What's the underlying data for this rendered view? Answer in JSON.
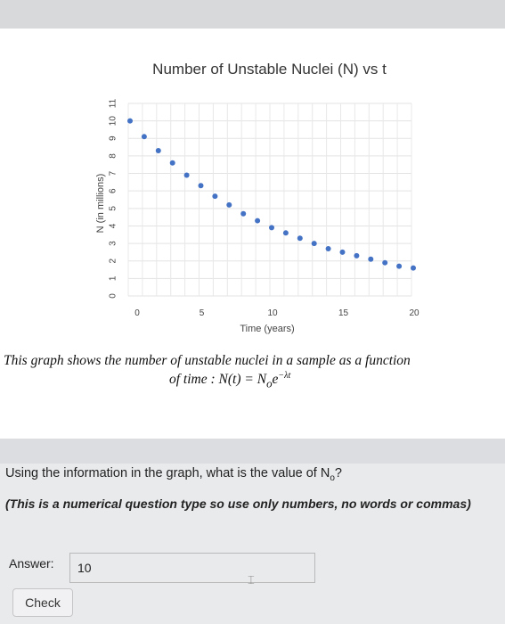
{
  "chart_data": {
    "type": "scatter",
    "title": "Number of Unstable Nuclei (N) vs t",
    "xlabel": "Time (years)",
    "ylabel": "N (in millions)",
    "xlim": [
      0,
      20
    ],
    "ylim": [
      0,
      11
    ],
    "x_ticks": [
      0,
      5,
      10,
      15,
      20
    ],
    "y_ticks": [
      0,
      1,
      2,
      3,
      4,
      5,
      6,
      7,
      8,
      9,
      10,
      11
    ],
    "grid": true,
    "marker_color": "#4472c4",
    "series": [
      {
        "x": [
          0,
          1,
          2,
          3,
          4,
          5,
          6,
          7,
          8,
          9,
          10,
          11,
          12,
          13,
          14,
          15,
          16,
          17,
          18,
          19,
          20
        ],
        "y": [
          10,
          9.1,
          8.3,
          7.6,
          6.9,
          6.3,
          5.7,
          5.2,
          4.7,
          4.3,
          3.9,
          3.6,
          3.3,
          3.0,
          2.7,
          2.5,
          2.3,
          2.1,
          1.9,
          1.7,
          1.6
        ]
      }
    ]
  },
  "caption": "This graph shows the number of unstable nuclei in a sample as a function",
  "formula": {
    "prefix": "of time :",
    "lhs": "N(t) = N",
    "sub": "o",
    "base": "e",
    "exponent": "−λt"
  },
  "question": {
    "text": "Using the information in the graph, what is the value of N",
    "sub": "o",
    "suffix": "?"
  },
  "note": "(This is a numerical question type so use only numbers, no words or commas)",
  "answer": {
    "label": "Answer:",
    "value": "10"
  },
  "check_label": "Check"
}
